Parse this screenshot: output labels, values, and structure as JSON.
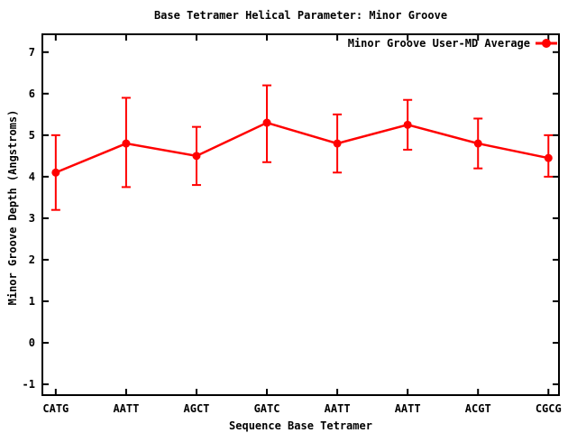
{
  "chart_data": {
    "type": "line",
    "title": "Base Tetramer Helical Parameter: Minor Groove",
    "xlabel": "Sequence Base Tetramer",
    "ylabel": "Minor Groove Depth (Angstroms)",
    "categories": [
      "CATG",
      "AATT",
      "AGCT",
      "GATC",
      "AATT",
      "AATT",
      "ACGT",
      "CGCG"
    ],
    "series": [
      {
        "name": "Minor Groove User-MD Average",
        "color": "#ff0000",
        "marker": "filled-circle",
        "values": [
          4.1,
          4.8,
          4.5,
          5.3,
          4.8,
          5.25,
          4.8,
          4.45
        ],
        "err_low": [
          3.2,
          3.75,
          3.8,
          4.35,
          4.1,
          4.65,
          4.2,
          4.0
        ],
        "err_high": [
          5.0,
          5.9,
          5.2,
          6.2,
          5.5,
          5.85,
          5.4,
          5.0
        ]
      }
    ],
    "yticks": [
      -1,
      0,
      1,
      2,
      3,
      4,
      5,
      6,
      7
    ],
    "ylim": [
      -1.26,
      7.43
    ],
    "xlim": [
      -0.19,
      7.15
    ],
    "grid": false,
    "legend": {
      "position": "top-right-inside"
    },
    "background": "#ffffff",
    "axis_color": "#000000"
  }
}
